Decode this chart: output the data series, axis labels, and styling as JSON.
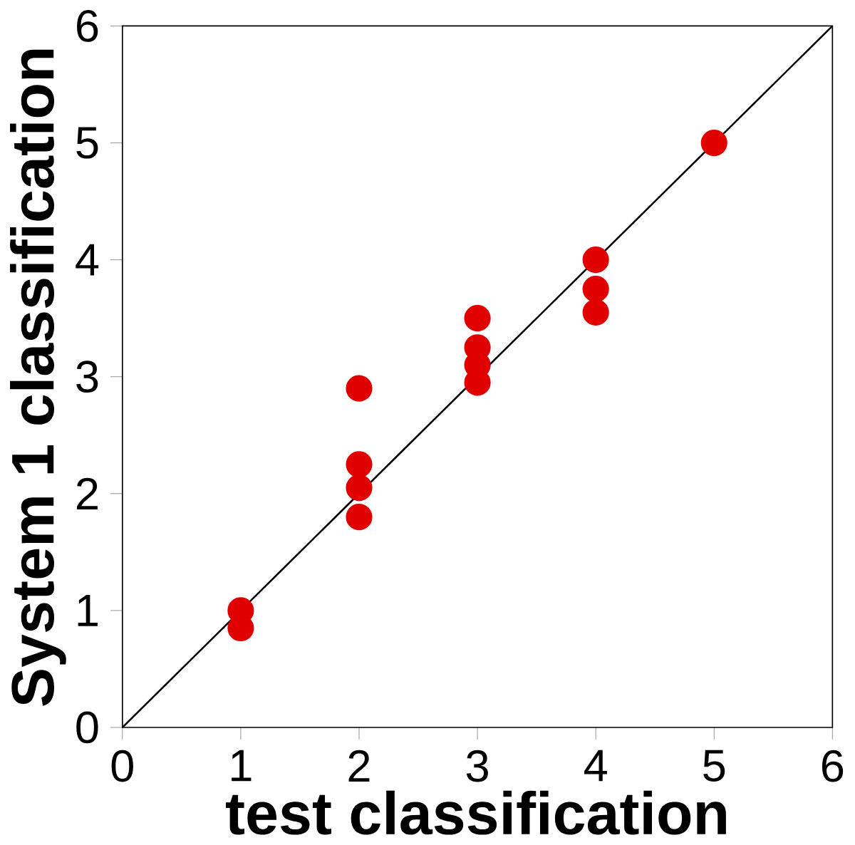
{
  "chart_data": {
    "type": "scatter",
    "xlabel": "test classification",
    "ylabel": "System 1 classification",
    "xlim": [
      0,
      6
    ],
    "ylim": [
      0,
      6
    ],
    "xticks": [
      0,
      1,
      2,
      3,
      4,
      5,
      6
    ],
    "yticks": [
      0,
      1,
      2,
      3,
      4,
      5,
      6
    ],
    "grid": false,
    "series": [
      {
        "marker": "circle",
        "color": "#e00000",
        "x": [
          1,
          1,
          2,
          2,
          2,
          2,
          3,
          3,
          3,
          3,
          4,
          4,
          4,
          5
        ],
        "values": [
          1.0,
          0.85,
          2.9,
          2.25,
          2.05,
          1.8,
          3.5,
          3.25,
          3.1,
          2.95,
          4.0,
          3.75,
          3.55,
          5.0
        ]
      },
      {
        "type": "line",
        "marker": "none",
        "color": "#000000",
        "x": [
          0,
          6
        ],
        "values": [
          0,
          6
        ]
      }
    ]
  }
}
